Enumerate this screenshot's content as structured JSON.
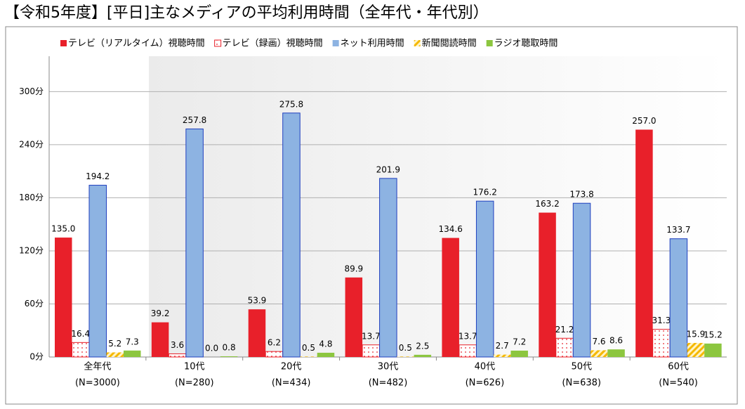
{
  "chart_data": {
    "type": "bar",
    "title": "【令和5年度】[平日]主なメディアの平均利用時間（全年代・年代別）",
    "categories": [
      "全年代",
      "10代",
      "20代",
      "30代",
      "40代",
      "50代",
      "60代"
    ],
    "category_samples": [
      "(N=3000)",
      "(N=280)",
      "(N=434)",
      "(N=482)",
      "(N=626)",
      "(N=638)",
      "(N=540)"
    ],
    "ylim": [
      0,
      340
    ],
    "yticks": [
      {
        "value": 0,
        "label": "0分"
      },
      {
        "value": 60,
        "label": "60分"
      },
      {
        "value": 120,
        "label": "120分"
      },
      {
        "value": 180,
        "label": "180分"
      },
      {
        "value": 240,
        "label": "240分"
      },
      {
        "value": 300,
        "label": "300分"
      }
    ],
    "grid": true,
    "legend": "top",
    "series": [
      {
        "name": "テレビ（リアルタイム）視聴時間",
        "color": "#e8202a",
        "pattern": "solid",
        "values": [
          135.0,
          39.2,
          53.9,
          89.9,
          134.6,
          163.2,
          257.0
        ],
        "value_labels": [
          "135.0",
          "39.2",
          "53.9",
          "89.9",
          "134.6",
          "163.2",
          "257.0"
        ]
      },
      {
        "name": "テレビ（録画）視聴時間",
        "color": "#e8202a",
        "pattern": "dots",
        "values": [
          16.4,
          3.6,
          6.2,
          13.7,
          13.7,
          21.2,
          31.3
        ],
        "value_labels": [
          "16.4",
          "3.6",
          "6.2",
          "13.7",
          "13.7",
          "21.2",
          "31.3"
        ]
      },
      {
        "name": "ネット利用時間",
        "color": "#8db3e2",
        "pattern": "solid",
        "values": [
          194.2,
          257.8,
          275.8,
          201.9,
          176.2,
          173.8,
          133.7
        ],
        "value_labels": [
          "194.2",
          "257.8",
          "275.8",
          "201.9",
          "176.2",
          "173.8",
          "133.7"
        ]
      },
      {
        "name": "新聞閲読時間",
        "color": "#f5b800",
        "pattern": "hatch",
        "values": [
          5.2,
          0.0,
          0.5,
          0.5,
          2.7,
          7.6,
          15.9
        ],
        "value_labels": [
          "5.2",
          "0.0",
          "0.5",
          "0.5",
          "2.7",
          "7.6",
          "15.9"
        ]
      },
      {
        "name": "ラジオ聴取時間",
        "color": "#8cc63f",
        "pattern": "solid",
        "values": [
          7.3,
          0.8,
          4.8,
          2.5,
          7.2,
          8.6,
          15.2
        ],
        "value_labels": [
          "7.3",
          "0.8",
          "4.8",
          "2.5",
          "7.2",
          "8.6",
          "15.2"
        ]
      }
    ]
  }
}
